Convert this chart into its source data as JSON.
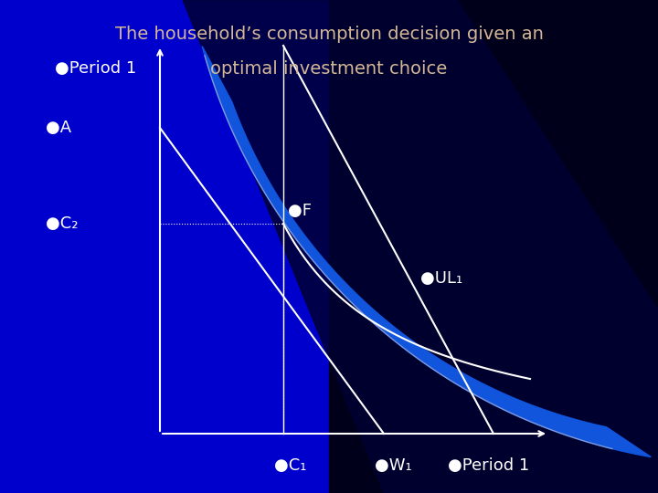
{
  "title_line1": "The household’s consumption decision given an",
  "title_line2": "optimal investment choice",
  "title_color": "#D4B896",
  "bg_color_main": "#0000CC",
  "bg_dark": "#00001A",
  "bg_blue_sweep": "#1144BB",
  "text_color": "white",
  "axes_color": "white",
  "line_color": "white",
  "dashed_color": "white",
  "curve_color": "white",
  "thin_arc_color": "#8899CC",
  "figsize": [
    7.2,
    5.4
  ],
  "dpi": 100,
  "label_period1_top": "●Period 1",
  "label_A": "●A",
  "label_C2": "●C₂",
  "label_F": "●F",
  "label_UL1": "●UL₁",
  "label_C1": "●C₁",
  "label_W1": "●W₁",
  "label_period1_bottom": "●Period 1"
}
